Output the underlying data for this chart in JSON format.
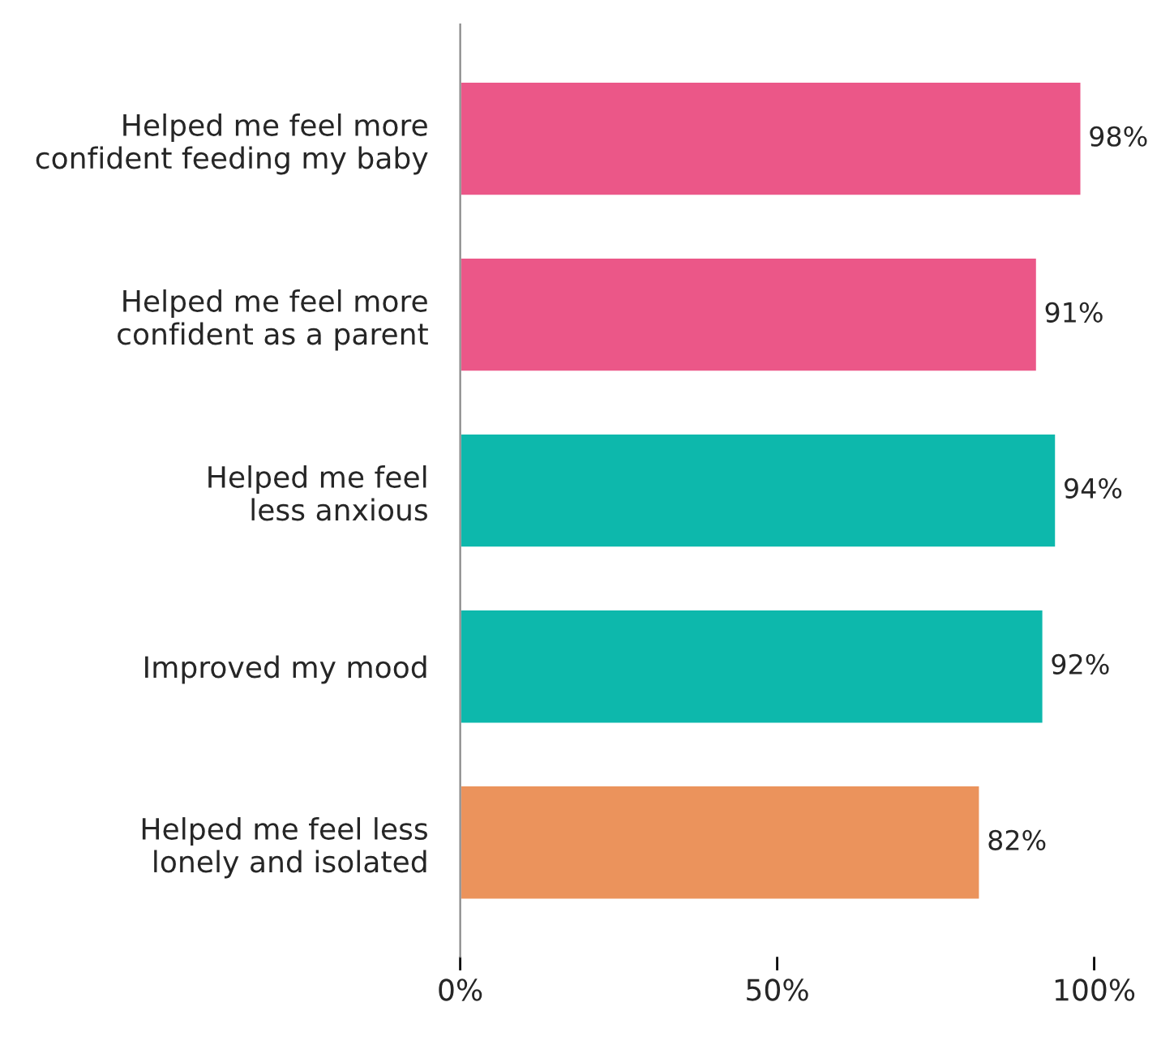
{
  "chart_data": {
    "type": "bar",
    "orientation": "horizontal",
    "categories": [
      "Helped me feel more\nconfident feeding my baby",
      "Helped me feel more\nconfident as a parent",
      "Helped me feel\nless anxious",
      "Improved my mood",
      "Helped me feel less\nlonely and isolated"
    ],
    "values": [
      98,
      91,
      94,
      92,
      82
    ],
    "colors": [
      "#eb5788",
      "#eb5788",
      "#0db8ac",
      "#0db8ac",
      "#eb935c"
    ],
    "value_labels": [
      "98%",
      "91%",
      "94%",
      "92%",
      "82%"
    ],
    "xlim": [
      0,
      100
    ],
    "xticks": [
      {
        "value": 0,
        "label": "0%"
      },
      {
        "value": 50,
        "label": "50%"
      },
      {
        "value": 100,
        "label": "100%"
      }
    ],
    "grid": false,
    "legend": false
  }
}
